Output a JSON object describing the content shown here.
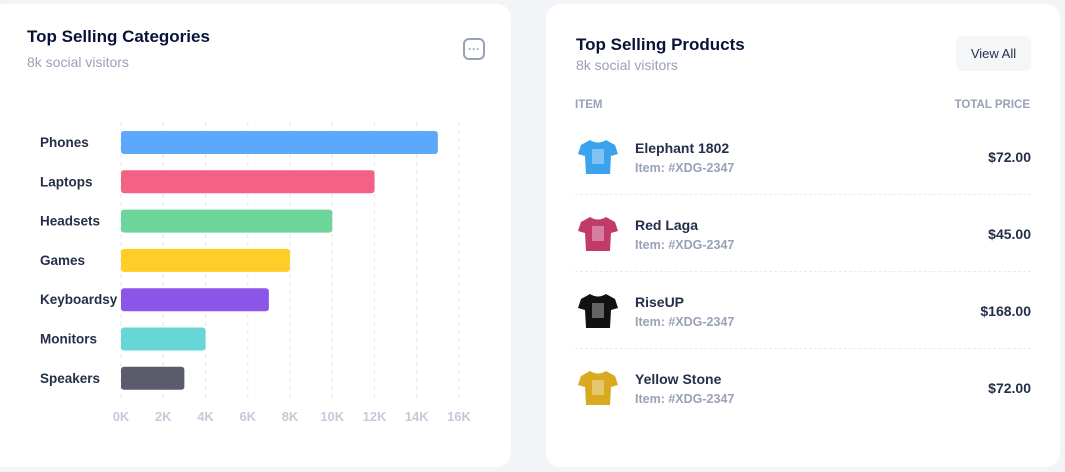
{
  "categories_card": {
    "title": "Top Selling Categories",
    "subtitle": "8k social visitors",
    "menu_icon": "more-horizontal-icon"
  },
  "chart_data": {
    "type": "bar",
    "orientation": "horizontal",
    "categories": [
      "Phones",
      "Laptops",
      "Headsets",
      "Games",
      "Keyboardsy",
      "Monitors",
      "Speakers"
    ],
    "values": [
      15000,
      12000,
      10000,
      8000,
      7000,
      4000,
      3000
    ],
    "colors": [
      "#5ba8fd",
      "#f56185",
      "#6dd59a",
      "#ffcd27",
      "#8b55ea",
      "#66d6d6",
      "#5a5c6b"
    ],
    "xlim": [
      0,
      16000
    ],
    "xticks": [
      "0K",
      "2K",
      "4K",
      "6K",
      "8K",
      "10K",
      "12K",
      "14K",
      "16K"
    ],
    "grid": true
  },
  "products_card": {
    "title": "Top Selling Products",
    "subtitle": "8k social visitors",
    "view_all": "View All",
    "col_item": "ITEM",
    "col_price": "TOTAL PRICE",
    "items": [
      {
        "name": "Elephant 1802",
        "id": "Item: #XDG-2347",
        "price": "$72.00",
        "color": "#3ba3ee"
      },
      {
        "name": "Red Laga",
        "id": "Item: #XDG-2347",
        "price": "$45.00",
        "color": "#c23a6a"
      },
      {
        "name": "RiseUP",
        "id": "Item: #XDG-2347",
        "price": "$168.00",
        "color": "#111111"
      },
      {
        "name": "Yellow Stone",
        "id": "Item: #XDG-2347",
        "price": "$72.00",
        "color": "#d9a91f"
      }
    ]
  }
}
